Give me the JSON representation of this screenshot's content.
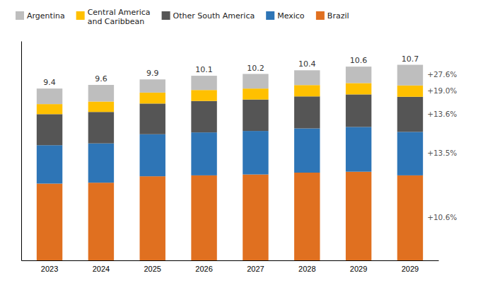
{
  "chart_data": {
    "type": "bar",
    "stacked": true,
    "categories": [
      "2023",
      "2024",
      "2025",
      "2026",
      "2027",
      "2028",
      "2029",
      "2029"
    ],
    "series": [
      {
        "name": "Brazil",
        "color": "#E07020",
        "values": [
          4.2,
          4.25,
          4.6,
          4.65,
          4.7,
          4.8,
          4.85,
          4.65
        ]
      },
      {
        "name": "Mexico",
        "color": "#2E75B6",
        "values": [
          2.1,
          2.15,
          2.3,
          2.35,
          2.38,
          2.42,
          2.45,
          2.38
        ]
      },
      {
        "name": "Other South America",
        "color": "#555555",
        "values": [
          1.7,
          1.72,
          1.68,
          1.72,
          1.72,
          1.75,
          1.78,
          1.92
        ]
      },
      {
        "name": "Central America\nand Caribbean",
        "color": "#FFC000",
        "values": [
          0.55,
          0.57,
          0.6,
          0.6,
          0.6,
          0.62,
          0.62,
          0.62
        ]
      },
      {
        "name": "Argentina",
        "color": "#BEBEBE",
        "values": [
          0.85,
          0.91,
          0.72,
          0.78,
          0.8,
          0.81,
          0.9,
          1.13
        ]
      }
    ],
    "totals": [
      9.4,
      9.6,
      9.9,
      10.1,
      10.2,
      10.4,
      10.6,
      10.7
    ],
    "annotations": [
      {
        "text": "+27.6%",
        "series": "Argentina"
      },
      {
        "text": "+19.0%",
        "series": "Central America\nand Caribbean"
      },
      {
        "text": "+13.6%",
        "series": "Other South America"
      },
      {
        "text": "+13.5%",
        "series": "Mexico"
      },
      {
        "text": "+10.6%",
        "series": "Brazil"
      }
    ],
    "ylim": [
      0,
      12.0
    ],
    "tick_labels": "x",
    "grid": false,
    "legend": "top"
  }
}
